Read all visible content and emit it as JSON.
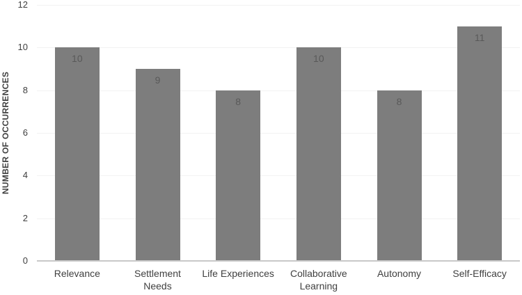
{
  "chart_data": {
    "type": "bar",
    "title": "",
    "xlabel": "",
    "ylabel": "NUMBER OF OCCURRENCES",
    "categories": [
      "Relevance",
      "Settlement Needs",
      "Life Experiences",
      "Collaborative Learning",
      "Autonomy",
      "Self-Efficacy"
    ],
    "values": [
      10,
      9,
      8,
      10,
      8,
      11
    ],
    "data_labels": [
      "10",
      "9",
      "8",
      "10",
      "8",
      "11"
    ],
    "xtick_lines": [
      [
        "Relevance"
      ],
      [
        "Settlement",
        "Needs"
      ],
      [
        "Life Experiences"
      ],
      [
        "Collaborative",
        "Learning"
      ],
      [
        "Autonomy"
      ],
      [
        "Self-Efficacy"
      ]
    ],
    "yticks": [
      0,
      2,
      4,
      6,
      8,
      10,
      12
    ],
    "ylim": [
      0,
      12
    ],
    "grid": "horizontal",
    "legend": "none",
    "colors": {
      "bar": "#7d7d7d",
      "data_label": "#595959",
      "tick_label": "#3f3f3f",
      "gridline": "#f2f2f2",
      "axis_line": "#c8c8c8",
      "background": "#ffffff"
    }
  }
}
